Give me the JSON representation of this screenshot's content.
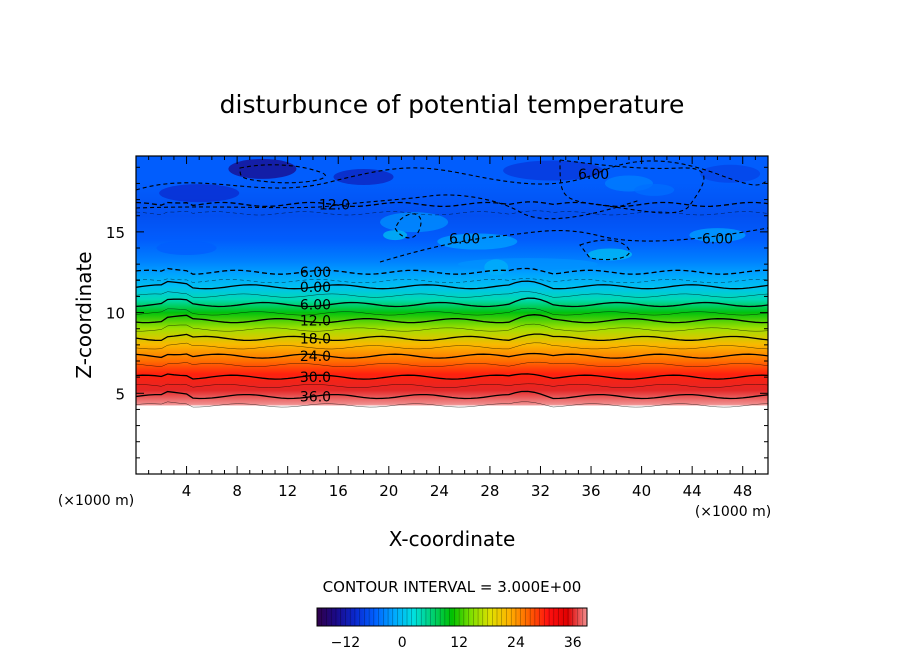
{
  "chart_data": {
    "type": "heatmap",
    "title": "disturbunce of potential temperature",
    "xlabel": "X-coordinate",
    "ylabel": "Z-coordinate",
    "x_unit": "(×1000 m)",
    "z_unit": "(×1000 m)",
    "xlim": [
      0,
      50
    ],
    "ylim": [
      0,
      19.7
    ],
    "x_ticks": [
      4,
      8,
      12,
      16,
      20,
      24,
      28,
      32,
      36,
      40,
      44,
      48
    ],
    "y_ticks": [
      5,
      10,
      15
    ],
    "contour_interval_label": "CONTOUR INTERVAL = 3.000E+00",
    "contour_interval": 3.0,
    "colorbar": {
      "range": [
        -18,
        39
      ],
      "ticks": [
        -12,
        0,
        12,
        24,
        36
      ],
      "colors": [
        "#30004a",
        "#1a0a8a",
        "#0a2ad0",
        "#0060ff",
        "#00a8ff",
        "#00e0e0",
        "#00d070",
        "#00c000",
        "#80e000",
        "#e0e000",
        "#ffb000",
        "#ff6000",
        "#ff1010",
        "#e00000",
        "#f09090"
      ]
    },
    "field_profile_by_z": [
      {
        "z": 19.7,
        "theta": -6
      },
      {
        "z": 18.0,
        "theta": -6
      },
      {
        "z": 16.0,
        "theta": -7
      },
      {
        "z": 14.5,
        "theta": -6
      },
      {
        "z": 13.2,
        "theta": -4
      },
      {
        "z": 12.4,
        "theta": -2
      },
      {
        "z": 11.6,
        "theta": 0
      },
      {
        "z": 10.8,
        "theta": 4
      },
      {
        "z": 10.0,
        "theta": 10
      },
      {
        "z": 9.0,
        "theta": 16
      },
      {
        "z": 8.0,
        "theta": 22
      },
      {
        "z": 7.0,
        "theta": 26
      },
      {
        "z": 6.2,
        "theta": 30
      },
      {
        "z": 5.2,
        "theta": 36
      },
      {
        "z": 4.3,
        "theta": 39
      },
      {
        "z": 4.2,
        "theta": null
      }
    ],
    "contours": [
      {
        "label": "36.0",
        "value": 36,
        "z": 4.8,
        "label_x": 14.2,
        "dashed": false
      },
      {
        "label": "30.0",
        "value": 30,
        "z": 6.0,
        "label_x": 14.2,
        "dashed": false
      },
      {
        "label": "24.0",
        "value": 24,
        "z": 7.3,
        "label_x": 14.2,
        "dashed": false
      },
      {
        "label": "18.0",
        "value": 18,
        "z": 8.4,
        "label_x": 14.2,
        "dashed": false
      },
      {
        "label": "12.0",
        "value": 12,
        "z": 9.5,
        "label_x": 14.2,
        "dashed": false
      },
      {
        "label": "6.00",
        "value": 6,
        "z": 10.5,
        "label_x": 14.2,
        "dashed": false
      },
      {
        "label": "0.00",
        "value": 0,
        "z": 11.6,
        "label_x": 14.2,
        "dashed": false
      },
      {
        "label": "6.00",
        "value": -6,
        "z": 12.5,
        "label_x": 14.2,
        "dashed": true
      },
      {
        "label": "12.0",
        "value": -12,
        "z": 16.7,
        "label_x": 15.7,
        "dashed": true
      },
      {
        "label": "6.00",
        "value": -6,
        "z": 14.6,
        "label_x": 26.0,
        "dashed": true
      },
      {
        "label": "6.00",
        "value": -6,
        "z": 18.6,
        "label_x": 36.2,
        "dashed": true
      },
      {
        "label": "6.00",
        "value": -6,
        "z": 14.6,
        "label_x": 46.0,
        "dashed": true
      }
    ]
  }
}
